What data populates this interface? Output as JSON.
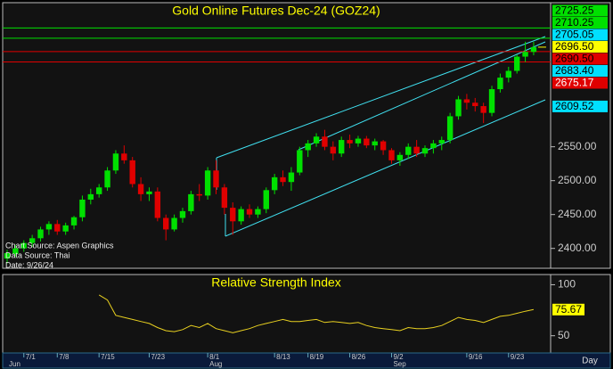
{
  "chart_data": [
    {
      "type": "candlestick",
      "title": "Gold Online Futures Dec-24 (GOZ24)",
      "categories": [
        null,
        null,
        "7/1",
        null,
        null,
        null,
        "7/8",
        null,
        null,
        null,
        null,
        "7/15",
        null,
        null,
        null,
        null,
        null,
        "7/23",
        null,
        null,
        null,
        null,
        null,
        null,
        "8/1",
        null,
        null,
        null,
        null,
        null,
        null,
        null,
        "8/13",
        null,
        null,
        null,
        "8/19",
        null,
        null,
        null,
        null,
        "8/26",
        null,
        null,
        null,
        null,
        "9/2",
        null,
        null,
        null,
        null,
        null,
        null,
        null,
        null,
        "9/16",
        null,
        null,
        null,
        null,
        "9/23",
        null,
        null,
        null
      ],
      "months": [
        "Jun",
        null,
        null,
        null,
        null,
        null,
        null,
        null,
        null,
        null,
        null,
        null,
        null,
        null,
        null,
        null,
        null,
        null,
        null,
        null,
        null,
        null,
        null,
        null,
        "Aug",
        null,
        null,
        null,
        null,
        null,
        null,
        null,
        null,
        null,
        null,
        null,
        null,
        null,
        null,
        null,
        null,
        null,
        null,
        null,
        null,
        null,
        "Sep",
        null,
        null,
        null,
        null,
        null,
        null,
        null,
        null,
        null,
        null,
        null,
        null,
        null,
        null,
        null,
        null,
        null
      ],
      "open": [
        2385,
        2392,
        2400,
        2408,
        2415,
        2428,
        2436,
        2425,
        2434,
        2446,
        2472,
        2480,
        2490,
        2515,
        2540,
        2530,
        2495,
        2480,
        2484,
        2445,
        2428,
        2445,
        2455,
        2480,
        2478,
        2515,
        2490,
        2460,
        2440,
        2458,
        2450,
        2458,
        2486,
        2505,
        2498,
        2512,
        2545,
        2555,
        2565,
        2550,
        2540,
        2560,
        2555,
        2562,
        2552,
        2558,
        2545,
        2530,
        2538,
        2550,
        2540,
        2548,
        2555,
        2560,
        2595,
        2620,
        2615,
        2610,
        2600,
        2635,
        2652,
        2662,
        2683,
        2690
      ],
      "high": [
        2398,
        2405,
        2412,
        2420,
        2432,
        2440,
        2442,
        2438,
        2448,
        2478,
        2488,
        2495,
        2520,
        2545,
        2552,
        2535,
        2505,
        2490,
        2490,
        2450,
        2450,
        2460,
        2485,
        2495,
        2520,
        2530,
        2495,
        2468,
        2462,
        2465,
        2462,
        2490,
        2510,
        2515,
        2520,
        2550,
        2560,
        2570,
        2575,
        2558,
        2565,
        2568,
        2566,
        2566,
        2562,
        2560,
        2548,
        2542,
        2555,
        2560,
        2552,
        2560,
        2565,
        2600,
        2625,
        2628,
        2622,
        2615,
        2640,
        2658,
        2668,
        2686,
        2705,
        2705
      ],
      "low": [
        2378,
        2388,
        2395,
        2402,
        2410,
        2420,
        2420,
        2420,
        2428,
        2440,
        2465,
        2475,
        2485,
        2510,
        2525,
        2490,
        2470,
        2470,
        2440,
        2412,
        2425,
        2438,
        2450,
        2470,
        2472,
        2480,
        2450,
        2420,
        2435,
        2445,
        2445,
        2452,
        2480,
        2492,
        2485,
        2508,
        2535,
        2550,
        2545,
        2530,
        2535,
        2548,
        2550,
        2548,
        2545,
        2538,
        2525,
        2522,
        2532,
        2535,
        2535,
        2540,
        2545,
        2555,
        2590,
        2605,
        2602,
        2585,
        2595,
        2630,
        2645,
        2658,
        2675,
        2685
      ],
      "close": [
        2393,
        2400,
        2408,
        2415,
        2428,
        2436,
        2425,
        2434,
        2446,
        2472,
        2480,
        2490,
        2515,
        2540,
        2530,
        2495,
        2480,
        2484,
        2445,
        2428,
        2445,
        2455,
        2480,
        2478,
        2515,
        2490,
        2460,
        2440,
        2458,
        2450,
        2458,
        2486,
        2505,
        2498,
        2512,
        2545,
        2555,
        2565,
        2550,
        2540,
        2560,
        2555,
        2562,
        2552,
        2558,
        2545,
        2530,
        2538,
        2550,
        2540,
        2548,
        2555,
        2560,
        2595,
        2620,
        2615,
        2610,
        2600,
        2635,
        2652,
        2662,
        2683,
        2690,
        2697
      ],
      "up_color": "#00e000",
      "down_color": "#e00000",
      "ylim": [
        2372,
        2760
      ],
      "yticks": [
        {
          "value": 2400,
          "label": "2400.00"
        },
        {
          "value": 2450,
          "label": "2450.00"
        },
        {
          "value": 2500,
          "label": "2500.00"
        },
        {
          "value": 2550,
          "label": "2550.00"
        }
      ],
      "levels": [
        {
          "value": 2725.25,
          "label": "2725.25",
          "color": "#00e000",
          "text_color": "#000000",
          "line": true
        },
        {
          "value": 2710.25,
          "label": "2710.25",
          "color": "#00e000",
          "text_color": "#000000",
          "line": true
        },
        {
          "value": 2705.05,
          "label": "2705.05",
          "color": "#00e0ff",
          "text_color": "#000000",
          "line": false
        },
        {
          "value": 2696.5,
          "label": "2696.50",
          "color": "#ffff00",
          "text_color": "#000000",
          "line": false
        },
        {
          "value": 2690.5,
          "label": "2690.50",
          "color": "#e00000",
          "text_color": "#000000",
          "line": true
        },
        {
          "value": 2683.4,
          "label": "2683.40",
          "color": "#00e0ff",
          "text_color": "#000000",
          "line": false
        },
        {
          "value": 2675.17,
          "label": "2675.17",
          "color": "#e00000",
          "text_color": "#ffffff",
          "line": true
        },
        {
          "value": 2609.52,
          "label": "2609.52",
          "color": "#00e0ff",
          "text_color": "#000000",
          "line": false
        }
      ],
      "annotations": [
        "Chart Source: Aspen Graphics",
        "Data Source: Thai",
        "Date: 9/26/24"
      ]
    },
    {
      "type": "line",
      "title": "Relative Strength Index",
      "values": [
        null,
        null,
        null,
        null,
        null,
        null,
        null,
        null,
        null,
        null,
        null,
        90,
        85,
        70,
        68,
        66,
        64,
        62,
        58,
        55,
        54,
        56,
        60,
        58,
        62,
        57,
        55,
        53,
        55,
        57,
        60,
        62,
        64,
        66,
        64,
        64,
        65,
        66,
        63,
        64,
        63,
        62,
        63,
        60,
        58,
        57,
        56,
        55,
        58,
        57,
        57,
        58,
        60,
        64,
        68,
        66,
        65,
        63,
        66,
        69,
        70,
        72,
        74,
        75.67
      ],
      "color": "#e8d020",
      "ylim": [
        34,
        110
      ],
      "yticks": [
        100,
        50
      ],
      "x_label": "Day"
    }
  ]
}
